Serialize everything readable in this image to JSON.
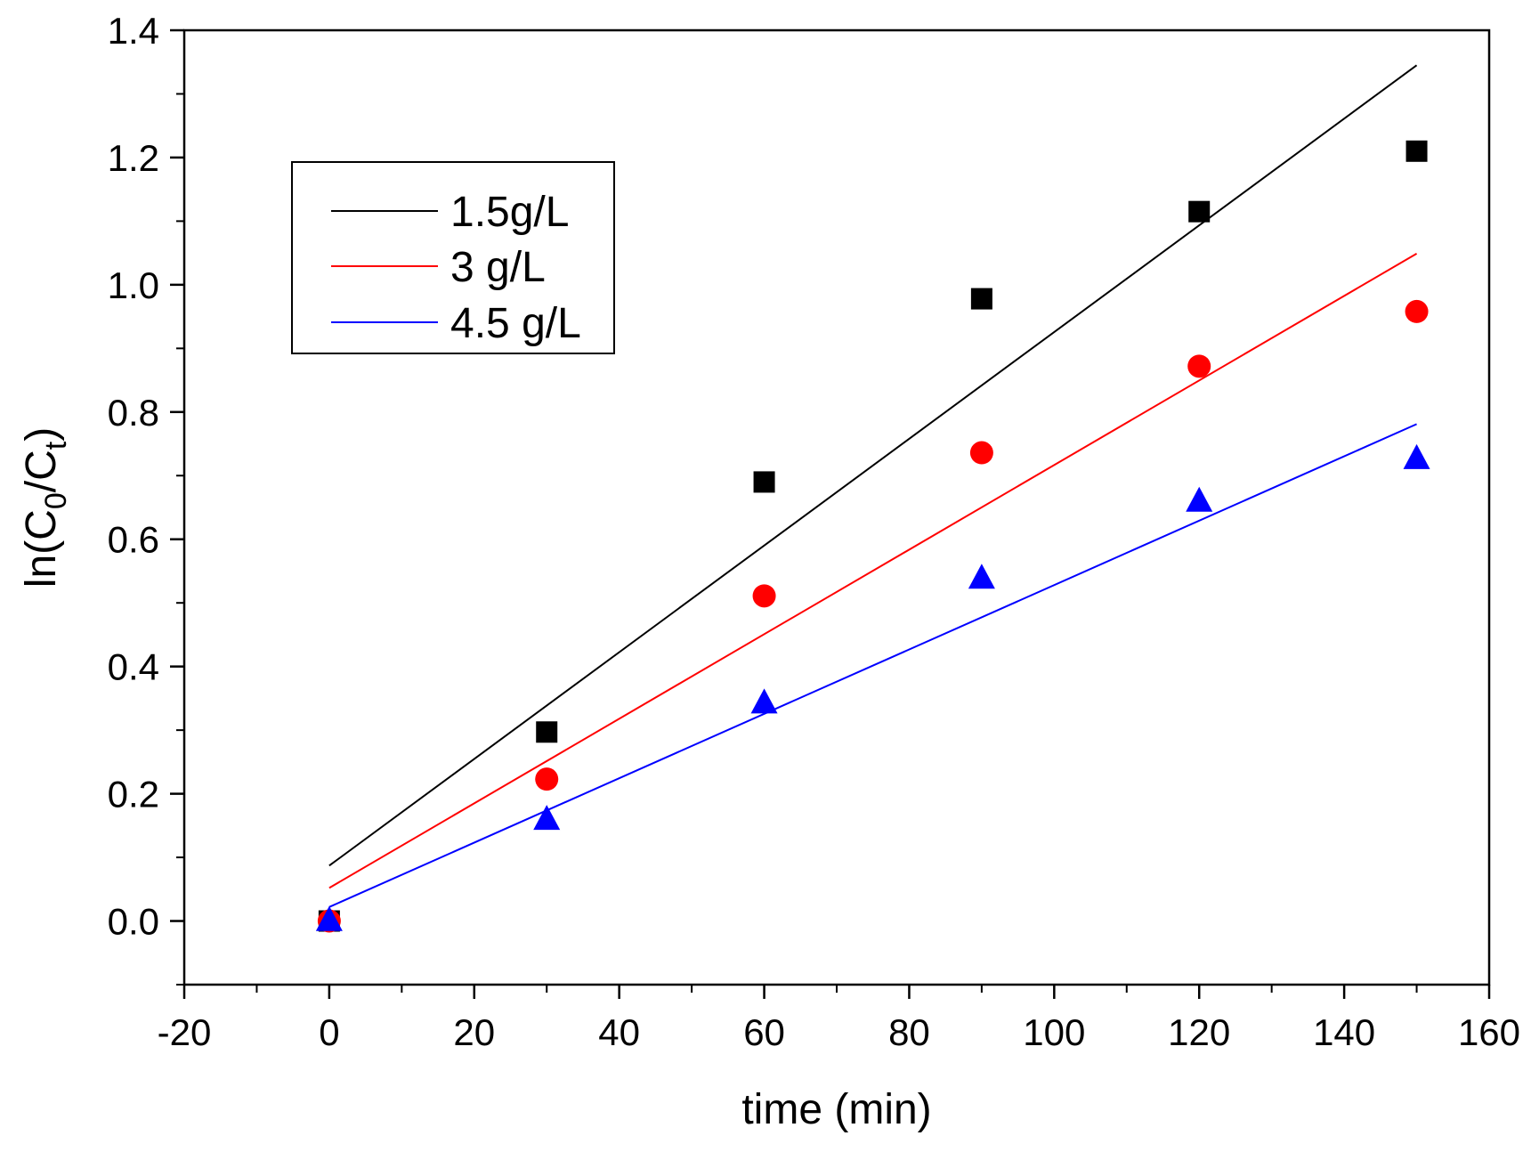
{
  "chart_data": {
    "type": "scatter",
    "title": "",
    "xlabel": "time (min)",
    "ylabel_parts": {
      "prefix": "ln(C",
      "sub1": "0",
      "middle": "/C",
      "sub2": "t",
      "suffix": ")"
    },
    "xlim": [
      -20,
      160
    ],
    "ylim": [
      -0.1,
      1.4
    ],
    "x_ticks": [
      -20,
      0,
      20,
      40,
      60,
      80,
      100,
      120,
      140,
      160
    ],
    "x_tick_labels": [
      "-20",
      "0",
      "20",
      "40",
      "60",
      "80",
      "100",
      "120",
      "140",
      "160"
    ],
    "y_ticks": [
      0.0,
      0.2,
      0.4,
      0.6,
      0.8,
      1.0,
      1.2,
      1.4
    ],
    "y_tick_labels": [
      "0.0",
      "0.2",
      "0.4",
      "0.6",
      "0.8",
      "1.0",
      "1.2",
      "1.4"
    ],
    "grid": false,
    "legend_position": "top-left",
    "series": [
      {
        "name": "1.5g/L",
        "color": "#000000",
        "marker": "square",
        "x": [
          0,
          30,
          60,
          90,
          120,
          150
        ],
        "y": [
          0.0,
          0.297,
          0.69,
          0.978,
          1.115,
          1.21
        ],
        "fit": {
          "x": [
            0,
            150
          ],
          "y": [
            0.087,
            1.345
          ]
        }
      },
      {
        "name": "3 g/L",
        "color": "#ff0000",
        "marker": "circle",
        "x": [
          0,
          30,
          60,
          90,
          120,
          150
        ],
        "y": [
          0.0,
          0.223,
          0.511,
          0.736,
          0.872,
          0.958
        ],
        "fit": {
          "x": [
            0,
            150
          ],
          "y": [
            0.052,
            1.049
          ]
        }
      },
      {
        "name": "4.5 g/L",
        "color": "#0000ff",
        "marker": "triangle",
        "x": [
          0,
          30,
          60,
          90,
          120,
          150
        ],
        "y": [
          0.0,
          0.159,
          0.342,
          0.538,
          0.659,
          0.726
        ],
        "fit": {
          "x": [
            0,
            150
          ],
          "y": [
            0.022,
            0.781
          ]
        }
      }
    ]
  }
}
